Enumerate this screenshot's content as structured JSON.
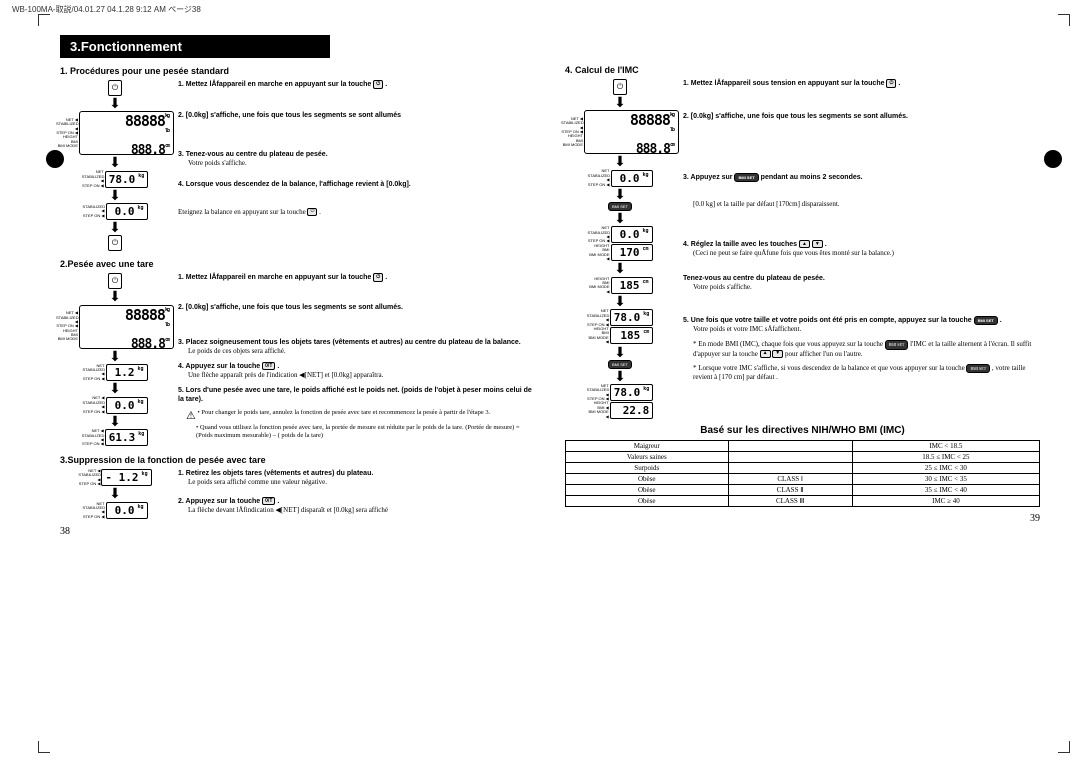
{
  "header": "WB-100MA-取説/04.01.27  04.1.28  9:12 AM  ページ38",
  "chapter": "3.Fonctionnement",
  "left_page": {
    "section1": {
      "title": "1. Procédures pour une pesée standard",
      "display_main": "88888",
      "display_sub": "888.8",
      "display_780": "78.0",
      "display_00": "0.0",
      "step1": "1.  Mettez lÅfappareil en marche en appuyant sur la touche",
      "step2": "2.  [0.0kg] s'affiche, une fois que tous les segments se sont allumés",
      "step3": "3.  Tenez-vous au centre du plateau de pesée.",
      "step3_note": "Votre poids s'affiche.",
      "step4": "4.  Lorsque vous descendez de la balance, l'affichage revient à [0.0kg].",
      "step4_note": "Eteignez la balance en appuyant sur la touche"
    },
    "section2": {
      "title": "2.Pesée avec une tare",
      "display_12": "1.2",
      "display_00": "0.0",
      "display_613": "61.3",
      "step1": "1.  Mettez lÅfappareil en marche en appuyant sur la touche",
      "step2": "2.  [0.0kg] s'affiche, une fois que tous les segments se sont allumés.",
      "step3": "3.  Placez soigneusement tous les objets tares (vêtements et autres) au centre du plateau de la balance.",
      "step3_note": "Le poids de ces objets sera affiché.",
      "step4": "4.  Appuyez sur la touche",
      "step4_note": "Une flèche apparaît près de l'indication ◀[NET] et [0.0kg] apparaîtra.",
      "step5": "5.  Lors d'une pesée avec une tare, le poids affiché est le poids net. (poids de l'objet à peser moins celui de la tare).",
      "step5_bullet1": "Pour changer le poids tare, annulez la fonction de pesée avec tare et recommencez la pesée à partir de l'étape 3.",
      "step5_bullet2": "Quand vous utilisez la fonction pesée avec tare, la portée de mesure est réduite par le poids de la tare. (Portée de mesure) = (Poids maximum mesurable) – ( poids de la tare)"
    },
    "section3": {
      "title": "3.Suppression de la fonction de pesée avec tare",
      "display_neg12": "- 1.2",
      "display_00": "0.0",
      "step1": "1.  Retirez les objets tares (vêtements et autres) du plateau.",
      "step1_note": "Le poids sera affiché comme une valeur négative.",
      "step2": "2.  Appuyez sur la touche",
      "step2_note": "La flèche devant lÅfindication ◀[NET] disparaît et [0.0kg] sera affiché"
    },
    "page_num": "38"
  },
  "right_page": {
    "section4": {
      "title": "4. Calcul de l'IMC",
      "display_00": "0.0",
      "display_170": "170",
      "display_185": "185",
      "display_780": "78.0",
      "display_185b": "185",
      "display_780b": "78.0",
      "display_228": "22.8",
      "step1": "1.  Mettez lÅfappareil sous tension en appuyant sur la touche",
      "step2": "2.  [0.0kg] s'affiche, une fois que tous les segments se sont allumés.",
      "step3": "3.  Appuyez sur         pendant au moins 2 secondes.",
      "step3_note": "[0.0 kg] et la taille par défaut [170cm] disparaissent.",
      "step4": "4.  Réglez la taille avec les touches",
      "step4_note": "(Ceci ne peut se faire quÅfune fois que vous êtes monté sur la balance.)",
      "step4b": "Tenez-vous au centre du plateau de pesée.",
      "step4b_note": "Votre poids s'affiche.",
      "step5": "5.  Une fois que votre taille et votre poids ont été pris en compte, appuyez sur la touche",
      "step5_note": "Votre poids et votre IMC sÅfaffichent.",
      "note1": "* En mode BMI (IMC), chaque fois que vous appuyez sur la touche        l'IMC et la taille alternent à l'écran. Il suffit d'appuyer sur la touche                pour afficher l'un ou l'autre.",
      "note2": "* Lorsque votre IMC s'affiche, si vous descendez de la balance et que vous appuyer sur la touche       , votre taille revient à [170 cm] par défaut ."
    },
    "bmi_table": {
      "title": "Basé sur les directives NIH/WHO BMI (IMC)",
      "rows": [
        [
          "Maigreur",
          "",
          "IMC  <  18.5"
        ],
        [
          "Valeurs saines",
          "",
          "18.5  ≤  IMC  <  25"
        ],
        [
          "Surpoids",
          "",
          "25  ≤  IMC  <  30"
        ],
        [
          "Obèse",
          "CLASS Ⅰ",
          "30  ≤  IMC  <  35"
        ],
        [
          "Obèse",
          "CLASS Ⅱ",
          "35  ≤  IMC  <  40"
        ],
        [
          "Obèse",
          "CLASS Ⅲ",
          "IMC  ≥  40"
        ]
      ]
    },
    "page_num": "39"
  },
  "labels": {
    "net": "NET",
    "stabilized": "STABILIZED",
    "stepon": "STEP ON",
    "height": "HEIGHT",
    "bmi": "BMI",
    "bmimode": "BMI MODE",
    "weight_lock": "WEIGHT LOCK",
    "kg": "kg",
    "cm": "cm",
    "bmiset": "BMI SET",
    "0t": "0/T"
  }
}
